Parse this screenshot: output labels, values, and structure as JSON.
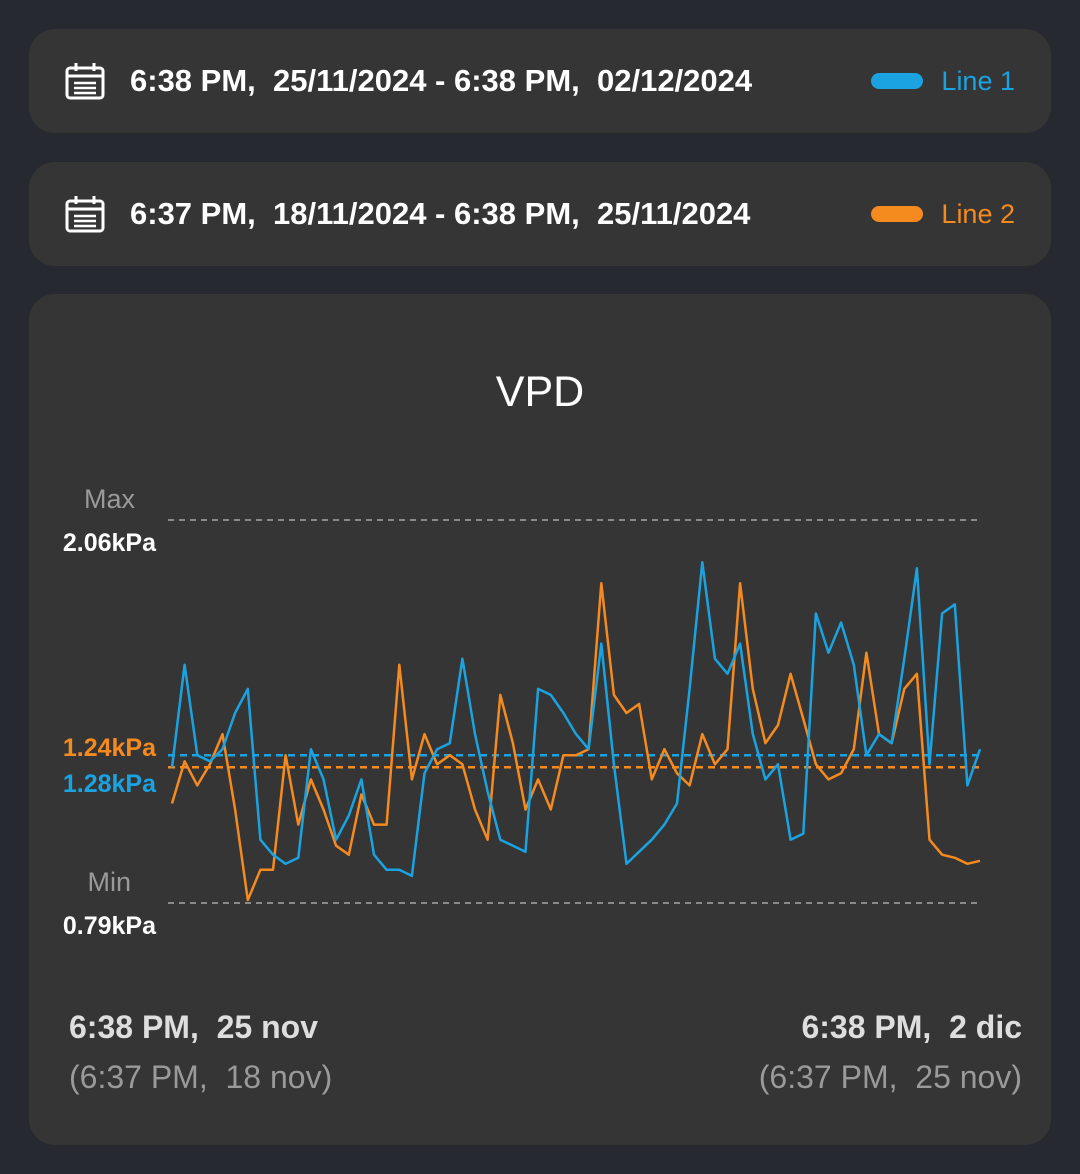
{
  "ranges": [
    {
      "label": "6:38 PM,  25/11/2024 - 6:38 PM,  02/12/2024",
      "series_label": "Line 1",
      "color": "#1aa3e0",
      "icon": "calendar-icon"
    },
    {
      "label": "6:37 PM,  18/11/2024 - 6:38 PM,  25/11/2024",
      "series_label": "Line 2",
      "color": "#f58a1f",
      "icon": "calendar-icon"
    }
  ],
  "chart_data": {
    "type": "line",
    "title": "VPD",
    "unit": "kPa",
    "ylim": [
      0.79,
      2.06
    ],
    "max_label": "Max",
    "max_value_label": "2.06kPa",
    "min_label": "Min",
    "min_value_label": "0.79kPa",
    "grid": false,
    "x_points_per_series": 65,
    "series": [
      {
        "name": "Line 1",
        "color": "#1aa3e0",
        "average": 1.28,
        "average_label": "1.28kPa",
        "values": [
          1.24,
          1.58,
          1.28,
          1.26,
          1.3,
          1.42,
          1.5,
          1.0,
          0.95,
          0.92,
          0.94,
          1.3,
          1.2,
          1.0,
          1.08,
          1.2,
          0.95,
          0.9,
          0.9,
          0.88,
          1.22,
          1.3,
          1.32,
          1.6,
          1.35,
          1.16,
          1.0,
          0.98,
          0.96,
          1.5,
          1.48,
          1.42,
          1.35,
          1.3,
          1.65,
          1.25,
          0.92,
          0.96,
          1.0,
          1.05,
          1.12,
          1.5,
          1.92,
          1.6,
          1.55,
          1.65,
          1.35,
          1.2,
          1.25,
          1.0,
          1.02,
          1.75,
          1.62,
          1.72,
          1.58,
          1.28,
          1.35,
          1.32,
          1.6,
          1.9,
          1.25,
          1.75,
          1.78,
          1.18,
          1.3
        ]
      },
      {
        "name": "Line 2",
        "color": "#f58a1f",
        "average": 1.24,
        "average_label": "1.24kPa",
        "values": [
          1.12,
          1.26,
          1.18,
          1.25,
          1.35,
          1.1,
          0.8,
          0.9,
          0.9,
          1.28,
          1.05,
          1.2,
          1.1,
          0.98,
          0.95,
          1.15,
          1.05,
          1.05,
          1.58,
          1.2,
          1.35,
          1.25,
          1.28,
          1.25,
          1.1,
          1.0,
          1.48,
          1.32,
          1.1,
          1.2,
          1.1,
          1.28,
          1.28,
          1.3,
          1.85,
          1.48,
          1.42,
          1.45,
          1.2,
          1.3,
          1.22,
          1.18,
          1.35,
          1.25,
          1.3,
          1.85,
          1.5,
          1.32,
          1.38,
          1.55,
          1.4,
          1.25,
          1.2,
          1.22,
          1.3,
          1.62,
          1.35,
          1.32,
          1.5,
          1.55,
          1.0,
          0.95,
          0.94,
          0.92,
          0.93
        ]
      }
    ]
  },
  "footer": {
    "left_main": "6:38 PM,  25 nov",
    "left_sub": "(6:37 PM,  18 nov)",
    "right_main": "6:38 PM,  2 dic",
    "right_sub": "(6:37 PM,  25 nov)"
  }
}
